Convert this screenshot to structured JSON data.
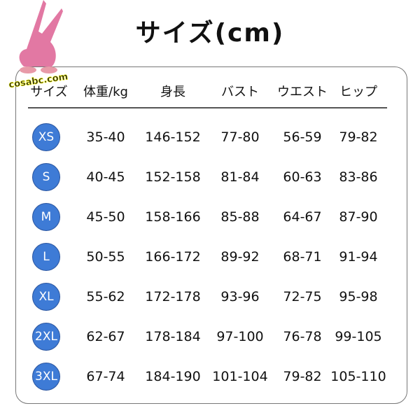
{
  "title": "サイズ(cm)",
  "logo": {
    "text": "cosabc.com",
    "color": "#e278a3"
  },
  "headers": [
    "サイズ",
    "体重/kg",
    "身長",
    "バスト",
    "ウエスト",
    "ヒップ"
  ],
  "badge_color": "#3e7bd6",
  "rows": [
    {
      "size": "XS",
      "values": [
        "35-40",
        "146-152",
        "77-80",
        "56-59",
        "79-82"
      ]
    },
    {
      "size": "S",
      "values": [
        "40-45",
        "152-158",
        "81-84",
        "60-63",
        "83-86"
      ]
    },
    {
      "size": "M",
      "values": [
        "45-50",
        "158-166",
        "85-88",
        "64-67",
        "87-90"
      ]
    },
    {
      "size": "L",
      "values": [
        "50-55",
        "166-172",
        "89-92",
        "68-71",
        "91-94"
      ]
    },
    {
      "size": "XL",
      "values": [
        "55-62",
        "172-178",
        "93-96",
        "72-75",
        "95-98"
      ]
    },
    {
      "size": "2XL",
      "values": [
        "62-67",
        "178-184",
        "97-100",
        "76-78",
        "99-105"
      ]
    },
    {
      "size": "3XL",
      "values": [
        "67-74",
        "184-190",
        "101-104",
        "79-82",
        "105-110"
      ]
    }
  ]
}
